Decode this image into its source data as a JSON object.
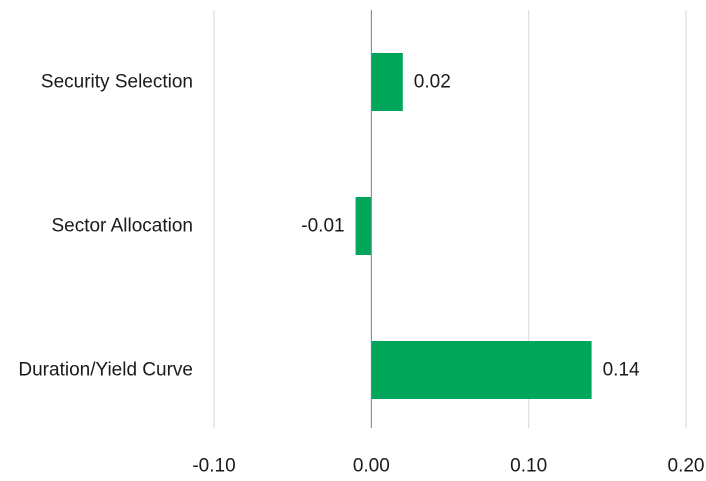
{
  "chart_data": {
    "type": "bar",
    "orientation": "horizontal",
    "title": "",
    "xlabel": "",
    "ylabel": "",
    "categories": [
      "Security Selection",
      "Sector Allocation",
      "Duration/Yield Curve"
    ],
    "values": [
      0.02,
      -0.01,
      0.14
    ],
    "data_labels": [
      "0.02",
      "-0.01",
      "0.14"
    ],
    "xlim": [
      -0.1,
      0.2
    ],
    "x_ticks": [
      -0.1,
      0.0,
      0.1,
      0.2
    ],
    "x_tick_labels": [
      "-0.10",
      "0.00",
      "0.10",
      "0.20"
    ],
    "grid": "vertical",
    "legend": "none",
    "bar_color": "#00a65a",
    "grid_color": "#d9d9d9",
    "zero_line_color": "#7f7f7f"
  }
}
